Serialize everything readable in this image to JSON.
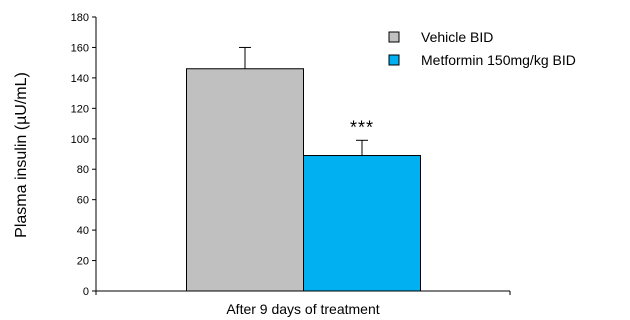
{
  "chart_data": {
    "type": "bar",
    "categories": [
      "After 9 days of treatment"
    ],
    "series": [
      {
        "name": "Vehicle BID",
        "values": [
          146
        ],
        "error": [
          14
        ],
        "color": "#c0c0c0"
      },
      {
        "name": "Metformin 150mg/kg BID",
        "values": [
          89
        ],
        "error": [
          10
        ],
        "color": "#00b0f0"
      }
    ],
    "ylabel": "Plasma insulin (µU/mL)",
    "xlabel": "",
    "ylim": [
      0,
      180
    ],
    "yticks": [
      0,
      20,
      40,
      60,
      80,
      100,
      120,
      140,
      160,
      180
    ],
    "annotations": [
      {
        "series": 1,
        "text": "***"
      }
    ],
    "legend_position": "top-right",
    "grid": false
  }
}
